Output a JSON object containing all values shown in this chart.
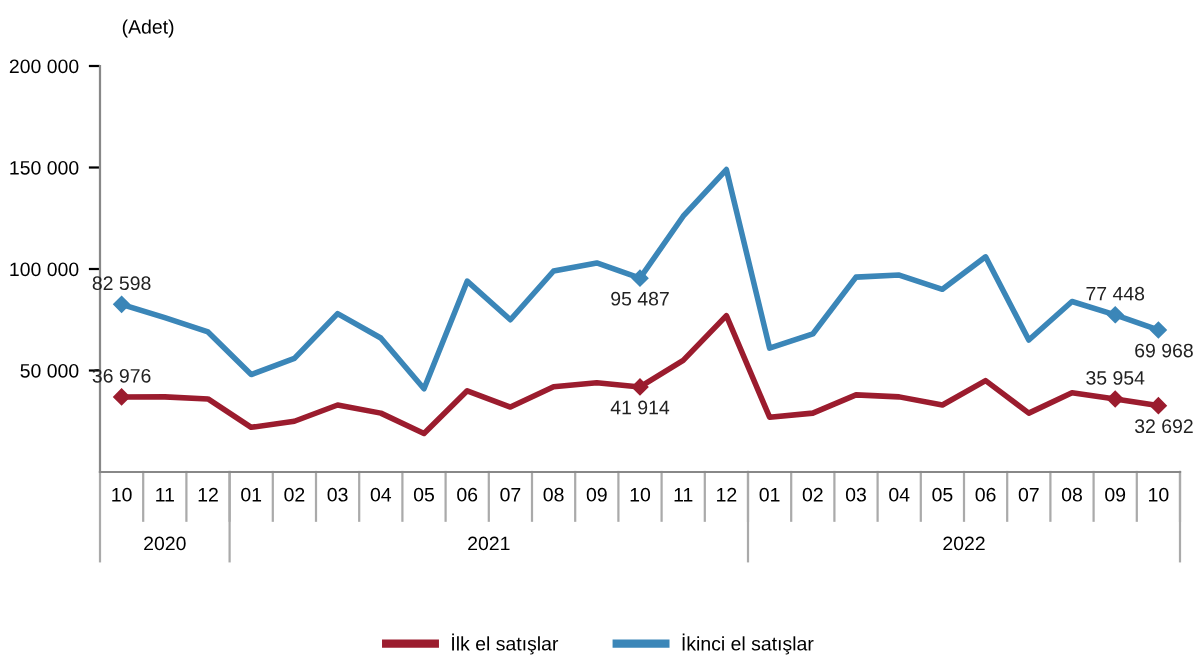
{
  "chart_data": {
    "type": "line",
    "ylabel": "(Adet)",
    "categories": [
      "10",
      "11",
      "12",
      "01",
      "02",
      "03",
      "04",
      "05",
      "06",
      "07",
      "08",
      "09",
      "10",
      "11",
      "12",
      "01",
      "02",
      "03",
      "04",
      "05",
      "06",
      "07",
      "08",
      "09",
      "10"
    ],
    "series": [
      {
        "name": "İlk el satışlar",
        "color": "#9b1c2e",
        "values": [
          36976,
          37000,
          36000,
          22000,
          25000,
          33000,
          29000,
          19000,
          40000,
          32000,
          42000,
          44000,
          41914,
          55000,
          77000,
          27000,
          29000,
          38000,
          37000,
          33000,
          45000,
          29000,
          39000,
          35954,
          32692
        ],
        "value_labels": [
          "36 976",
          null,
          null,
          null,
          null,
          null,
          null,
          null,
          null,
          null,
          null,
          null,
          "41 914",
          null,
          null,
          null,
          null,
          null,
          null,
          null,
          null,
          null,
          null,
          "35 954",
          "32 692"
        ]
      },
      {
        "name": "İkinci el satışlar",
        "color": "#3b86b8",
        "values": [
          82598,
          76000,
          69000,
          48000,
          56000,
          78000,
          66000,
          41000,
          94000,
          75000,
          99000,
          103000,
          95487,
          126000,
          149000,
          61000,
          68000,
          96000,
          97000,
          90000,
          106000,
          65000,
          84000,
          77448,
          69968
        ],
        "value_labels": [
          "82 598",
          null,
          null,
          null,
          null,
          null,
          null,
          null,
          null,
          null,
          null,
          null,
          "95 487",
          null,
          null,
          null,
          null,
          null,
          null,
          null,
          null,
          null,
          null,
          "77 448",
          "69 968"
        ]
      }
    ],
    "annotations": [
      "2020",
      "2021",
      "2022"
    ],
    "ylim": [
      0,
      200000
    ],
    "yticks": [
      {
        "value": 50000,
        "label": "50 000"
      },
      {
        "value": 100000,
        "label": "100 000"
      },
      {
        "value": 150000,
        "label": "150 000"
      },
      {
        "value": 200000,
        "label": "200 000"
      }
    ],
    "grid": false,
    "legend": "bottom",
    "line_style": "solid"
  }
}
